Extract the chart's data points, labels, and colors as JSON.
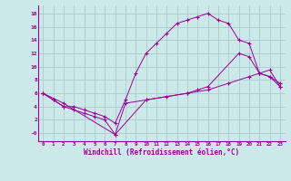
{
  "xlabel": "Windchill (Refroidissement éolien,°C)",
  "bg_color": "#cde8e8",
  "line_color": "#990099",
  "grid_color": "#aacccc",
  "xlim": [
    -0.5,
    23.5
  ],
  "ylim": [
    -1.2,
    19.2
  ],
  "yticks": [
    0,
    2,
    4,
    6,
    8,
    10,
    12,
    14,
    16,
    18
  ],
  "ytick_labels": [
    "-0",
    "2",
    "4",
    "6",
    "8",
    "10",
    "12",
    "14",
    "16",
    "18"
  ],
  "xticks": [
    0,
    1,
    2,
    3,
    4,
    5,
    6,
    7,
    8,
    9,
    10,
    11,
    12,
    13,
    14,
    15,
    16,
    17,
    18,
    19,
    20,
    21,
    22,
    23
  ],
  "line1_x": [
    0,
    1,
    2,
    3,
    4,
    5,
    6,
    7,
    8,
    9,
    10,
    11,
    12,
    13,
    14,
    15,
    16,
    17,
    18,
    19,
    20,
    21,
    22,
    23
  ],
  "line1_y": [
    6,
    5,
    4,
    4,
    3.5,
    3,
    2.5,
    1.5,
    5,
    9,
    12,
    13.5,
    15,
    16.5,
    17,
    17.5,
    18,
    17,
    16.5,
    14,
    13.5,
    9,
    8.5,
    7.5
  ],
  "line2_x": [
    0,
    1,
    2,
    3,
    4,
    5,
    6,
    7,
    8,
    10,
    12,
    14,
    16,
    18,
    20,
    21,
    22,
    23
  ],
  "line2_y": [
    6,
    5,
    4,
    3.5,
    3,
    2.5,
    2,
    -0.2,
    4.5,
    5.0,
    5.5,
    6.0,
    6.5,
    7.5,
    8.5,
    9.0,
    9.5,
    7.0
  ],
  "line3_x": [
    0,
    2,
    7,
    10,
    14,
    15,
    16,
    19,
    20,
    21,
    22,
    23
  ],
  "line3_y": [
    6,
    4.5,
    -0.2,
    5.0,
    6.0,
    6.5,
    7.0,
    12.0,
    11.5,
    9.0,
    8.5,
    7.0
  ]
}
